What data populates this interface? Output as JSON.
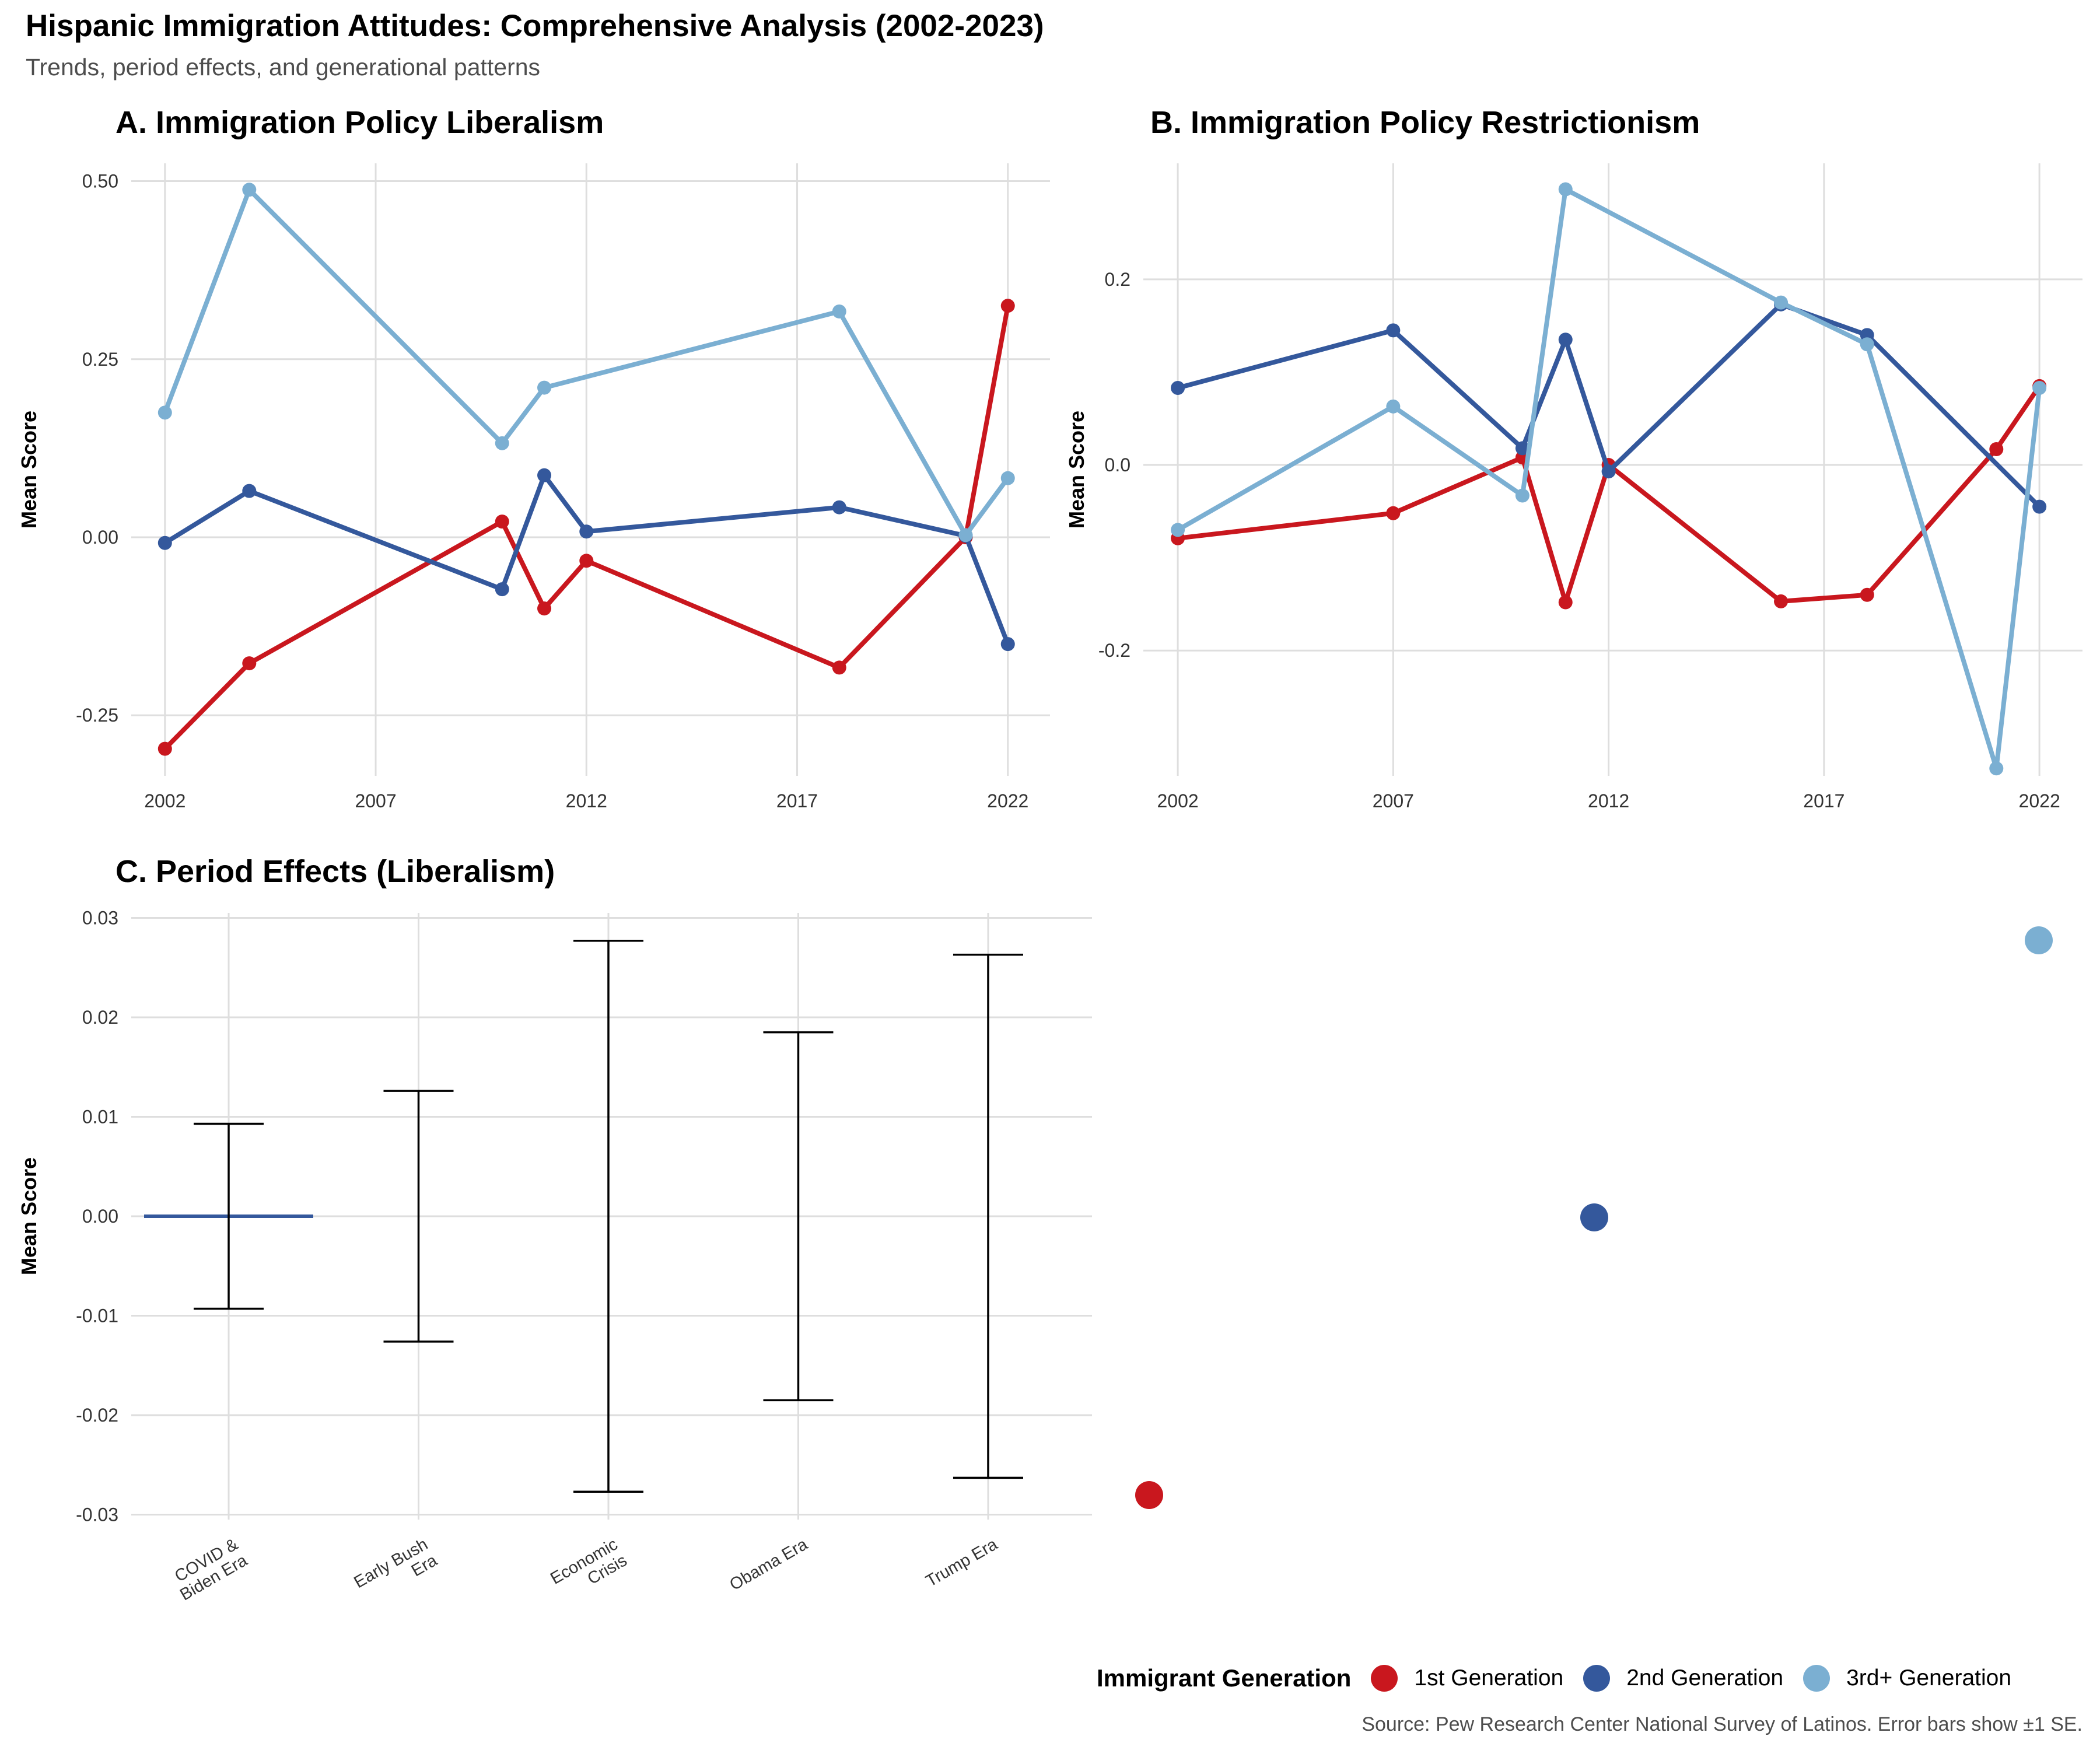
{
  "header": {
    "title": "Hispanic Immigration Attitudes: Comprehensive Analysis (2002-2023)",
    "subtitle": "Trends, period effects, and generational patterns"
  },
  "caption": "Source: Pew Research Center National Survey of Latinos. Error bars show ±1 SE.",
  "colors": {
    "gen1": "#c9171e",
    "gen2": "#34589c",
    "gen3": "#7bafd2",
    "errorbar": "#000000",
    "grid": "#dedede",
    "text": "#333333"
  },
  "legend": {
    "title": "Immigrant Generation",
    "items": [
      {
        "label": "1st Generation",
        "color": "#c9171e"
      },
      {
        "label": "2nd Generation",
        "color": "#34589c"
      },
      {
        "label": "3rd+ Generation",
        "color": "#7bafd2"
      }
    ]
  },
  "chart_data": [
    {
      "type": "line",
      "title": "A. Immigration Policy Liberalism",
      "xlabel": "",
      "ylabel": "Mean Score",
      "xlim": [
        2001.2,
        2023.0
      ],
      "ylim": [
        -0.335,
        0.525
      ],
      "x_ticks": [
        2002,
        2007,
        2012,
        2017,
        2022
      ],
      "y_ticks": [
        -0.25,
        0.0,
        0.25,
        0.5
      ],
      "y_tick_labels": [
        "-0.25",
        "0.00",
        "0.25",
        "0.50"
      ],
      "grid": true,
      "series": [
        {
          "name": "1st Generation",
          "color": "#c9171e",
          "x": [
            2002,
            2004,
            2010,
            2011,
            2012,
            2018,
            2021,
            2022
          ],
          "y": [
            -0.297,
            -0.177,
            0.022,
            -0.1,
            -0.033,
            -0.183,
            0.0,
            0.325
          ]
        },
        {
          "name": "2nd Generation",
          "color": "#34589c",
          "x": [
            2002,
            2004,
            2010,
            2011,
            2012,
            2018,
            2021,
            2022
          ],
          "y": [
            -0.008,
            0.065,
            -0.073,
            0.087,
            0.008,
            0.042,
            0.002,
            -0.15
          ]
        },
        {
          "name": "3rd+ Generation",
          "color": "#7bafd2",
          "x": [
            2002,
            2004,
            2010,
            2011,
            2018,
            2021,
            2022
          ],
          "y": [
            0.175,
            0.488,
            0.132,
            0.21,
            0.317,
            0.003,
            0.083
          ]
        }
      ]
    },
    {
      "type": "line",
      "title": "B. Immigration Policy Restrictionism",
      "xlabel": "",
      "ylabel": "Mean Score",
      "xlim": [
        2001.2,
        2023.0
      ],
      "ylim": [
        -0.335,
        0.325
      ],
      "x_ticks": [
        2002,
        2007,
        2012,
        2017,
        2022
      ],
      "y_ticks": [
        -0.2,
        0.0,
        0.2
      ],
      "y_tick_labels": [
        "-0.2",
        "0.0",
        "0.2"
      ],
      "grid": true,
      "series": [
        {
          "name": "1st Generation",
          "color": "#c9171e",
          "x": [
            2002,
            2007,
            2010,
            2011,
            2012,
            2016,
            2018,
            2021,
            2022
          ],
          "y": [
            -0.079,
            -0.052,
            0.008,
            -0.148,
            0.0,
            -0.147,
            -0.14,
            0.017,
            0.085
          ]
        },
        {
          "name": "2nd Generation",
          "color": "#34589c",
          "x": [
            2002,
            2007,
            2010,
            2011,
            2012,
            2016,
            2018,
            2021,
            2022
          ],
          "y": [
            0.083,
            0.145,
            0.018,
            0.135,
            -0.007,
            0.173,
            0.14,
            null,
            -0.045
          ]
        },
        {
          "name": "3rd+ Generation",
          "color": "#7bafd2",
          "x": [
            2002,
            2007,
            2010,
            2011,
            2016,
            2018,
            2021,
            2022
          ],
          "y": [
            -0.07,
            0.063,
            -0.033,
            0.297,
            0.175,
            0.13,
            -0.327,
            0.083
          ]
        }
      ]
    },
    {
      "type": "bar",
      "title": "C. Period Effects (Liberalism)",
      "xlabel": "",
      "ylabel": "Mean Score",
      "categories": [
        "COVID & Biden Era",
        "Early Bush Era",
        "Economic Crisis",
        "Obama Era",
        "Trump Era"
      ],
      "category_tick_lines": [
        [
          "COVID &",
          "Biden Era"
        ],
        [
          "Early Bush",
          "Era"
        ],
        [
          "Economic",
          "Crisis"
        ],
        [
          "Obama Era"
        ],
        [
          "Trump Era"
        ]
      ],
      "values": [
        0.0,
        0.0,
        0.0,
        0.0,
        0.0
      ],
      "se": [
        0.0093,
        0.0126,
        0.0277,
        0.0185,
        0.0263
      ],
      "ylim": [
        -0.0305,
        0.0305
      ],
      "y_ticks": [
        -0.03,
        -0.02,
        -0.01,
        0.0,
        0.01,
        0.02,
        0.03
      ],
      "y_tick_labels": [
        "-0.03",
        "-0.02",
        "-0.01",
        "0.00",
        "0.01",
        "0.02",
        "0.03"
      ],
      "grid": true,
      "highlight_color": "#34589c"
    }
  ]
}
